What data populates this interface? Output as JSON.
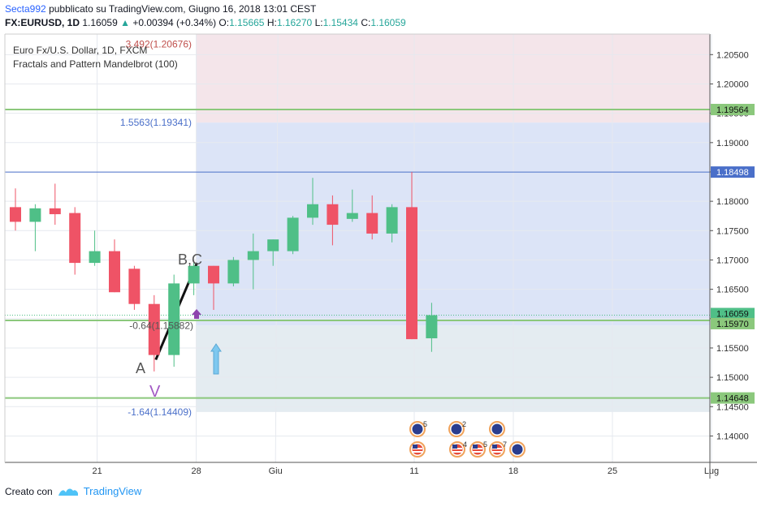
{
  "header": {
    "author": "Secta992",
    "published": "pubblicato su TradingView.com, Giugno 16, 2018 13:01 CEST",
    "symbol": "FX:EURUSD, 1D",
    "last": "1.16059",
    "change_arrow": "▲",
    "change": "+0.00394 (+0.34%)",
    "o_label": "O:",
    "o": "1.15665",
    "h_label": "H:",
    "h": "1.16270",
    "l_label": "L:",
    "l": "1.15434",
    "c_label": "C:",
    "c": "1.16059"
  },
  "legend": {
    "line1": "Euro Fx/U.S. Dollar, 1D, FXCM",
    "line2": "Fractals and Pattern Mandelbrot (100)"
  },
  "footer": {
    "created_with": "Creato con",
    "brand": "TradingView"
  },
  "colors": {
    "up": "#4fbf87",
    "down": "#ef5366",
    "grid": "#e6e9ef",
    "green_line": "#8bc87c",
    "blue_line": "#4a6fc9"
  },
  "chart_data": {
    "type": "candlestick",
    "x_ticks": [
      {
        "label": "21",
        "x": 4
      },
      {
        "label": "28",
        "x": 9
      },
      {
        "label": "Giu",
        "x": 13
      },
      {
        "label": "11",
        "x": 20
      },
      {
        "label": "18",
        "x": 25
      },
      {
        "label": "25",
        "x": 30
      },
      {
        "label": "Lug",
        "x": 35
      }
    ],
    "y_ticks": [
      "1.14000",
      "1.14500",
      "1.15000",
      "1.15500",
      "1.16000",
      "1.16500",
      "1.17000",
      "1.17500",
      "1.18000",
      "1.18500",
      "1.19000",
      "1.19500",
      "1.20000",
      "1.20500"
    ],
    "ylim": [
      1.1355,
      1.2085
    ],
    "price_tags": [
      {
        "value": 1.19564,
        "label": "1.19564",
        "color": "#8bc87c"
      },
      {
        "value": 1.18498,
        "label": "1.18498",
        "color": "#4a6fc9"
      },
      {
        "value": 1.16059,
        "label": "1.16059",
        "color": "#4fbf87"
      },
      {
        "value": 1.1597,
        "label": "1.15970",
        "color": "#8bc87c"
      },
      {
        "value": 1.14648,
        "label": "1.14648",
        "color": "#8bc87c"
      }
    ],
    "fib_levels": [
      {
        "label": "3.492(1.20676)",
        "value": 1.20676
      },
      {
        "label": "1.5563(1.19341)",
        "value": 1.19341
      },
      {
        "label": "-0.64(1.15882)",
        "value": 1.15882
      },
      {
        "label": "-1.64(1.14409)",
        "value": 1.14409
      }
    ],
    "pattern_labels": [
      {
        "label": "A",
        "x": 7
      },
      {
        "label": "B,C",
        "x": 9.6
      },
      {
        "label": "V",
        "x": 8
      }
    ],
    "candles": [
      {
        "x": 0,
        "o": 1.179,
        "h": 1.1822,
        "l": 1.175,
        "c": 1.1765
      },
      {
        "x": 1,
        "o": 1.1765,
        "h": 1.1795,
        "l": 1.1715,
        "c": 1.1788
      },
      {
        "x": 2,
        "o": 1.1788,
        "h": 1.183,
        "l": 1.176,
        "c": 1.1778
      },
      {
        "x": 3,
        "o": 1.178,
        "h": 1.179,
        "l": 1.1675,
        "c": 1.1695
      },
      {
        "x": 4,
        "o": 1.1695,
        "h": 1.175,
        "l": 1.169,
        "c": 1.1715
      },
      {
        "x": 5,
        "o": 1.1715,
        "h": 1.1735,
        "l": 1.1645,
        "c": 1.1645
      },
      {
        "x": 6,
        "o": 1.1685,
        "h": 1.169,
        "l": 1.1615,
        "c": 1.1625
      },
      {
        "x": 7,
        "o": 1.1625,
        "h": 1.164,
        "l": 1.151,
        "c": 1.1538
      },
      {
        "x": 8,
        "o": 1.1538,
        "h": 1.1675,
        "l": 1.1518,
        "c": 1.166
      },
      {
        "x": 9,
        "o": 1.166,
        "h": 1.1695,
        "l": 1.164,
        "c": 1.169
      },
      {
        "x": 10,
        "o": 1.169,
        "h": 1.169,
        "l": 1.1615,
        "c": 1.166
      },
      {
        "x": 11,
        "o": 1.166,
        "h": 1.1705,
        "l": 1.1655,
        "c": 1.17
      },
      {
        "x": 12,
        "o": 1.17,
        "h": 1.1745,
        "l": 1.165,
        "c": 1.1715
      },
      {
        "x": 13,
        "o": 1.1715,
        "h": 1.1735,
        "l": 1.169,
        "c": 1.1735
      },
      {
        "x": 14,
        "o": 1.1715,
        "h": 1.1775,
        "l": 1.171,
        "c": 1.1772
      },
      {
        "x": 15,
        "o": 1.1772,
        "h": 1.184,
        "l": 1.176,
        "c": 1.1795
      },
      {
        "x": 16,
        "o": 1.1795,
        "h": 1.181,
        "l": 1.1725,
        "c": 1.176
      },
      {
        "x": 17,
        "o": 1.177,
        "h": 1.182,
        "l": 1.1765,
        "c": 1.178
      },
      {
        "x": 18,
        "o": 1.178,
        "h": 1.181,
        "l": 1.1735,
        "c": 1.1745
      },
      {
        "x": 19,
        "o": 1.1745,
        "h": 1.1795,
        "l": 1.173,
        "c": 1.179
      },
      {
        "x": 20,
        "o": 1.179,
        "h": 1.185,
        "l": 1.1565,
        "c": 1.1565
      },
      {
        "x": 21,
        "o": 1.15665,
        "h": 1.1627,
        "l": 1.15434,
        "c": 1.16059
      }
    ],
    "events": [
      {
        "type": "eu",
        "count": "5",
        "x": 21
      },
      {
        "type": "us",
        "count": "",
        "x": 21
      },
      {
        "type": "eu",
        "count": "2",
        "x": 23
      },
      {
        "type": "us",
        "count": "4",
        "x": 23
      },
      {
        "type": "us",
        "count": "5",
        "x": 24
      },
      {
        "type": "eu",
        "count": "",
        "x": 25
      },
      {
        "type": "us",
        "count": "7",
        "x": 25
      },
      {
        "type": "eu",
        "count": "",
        "x": 26
      }
    ]
  }
}
